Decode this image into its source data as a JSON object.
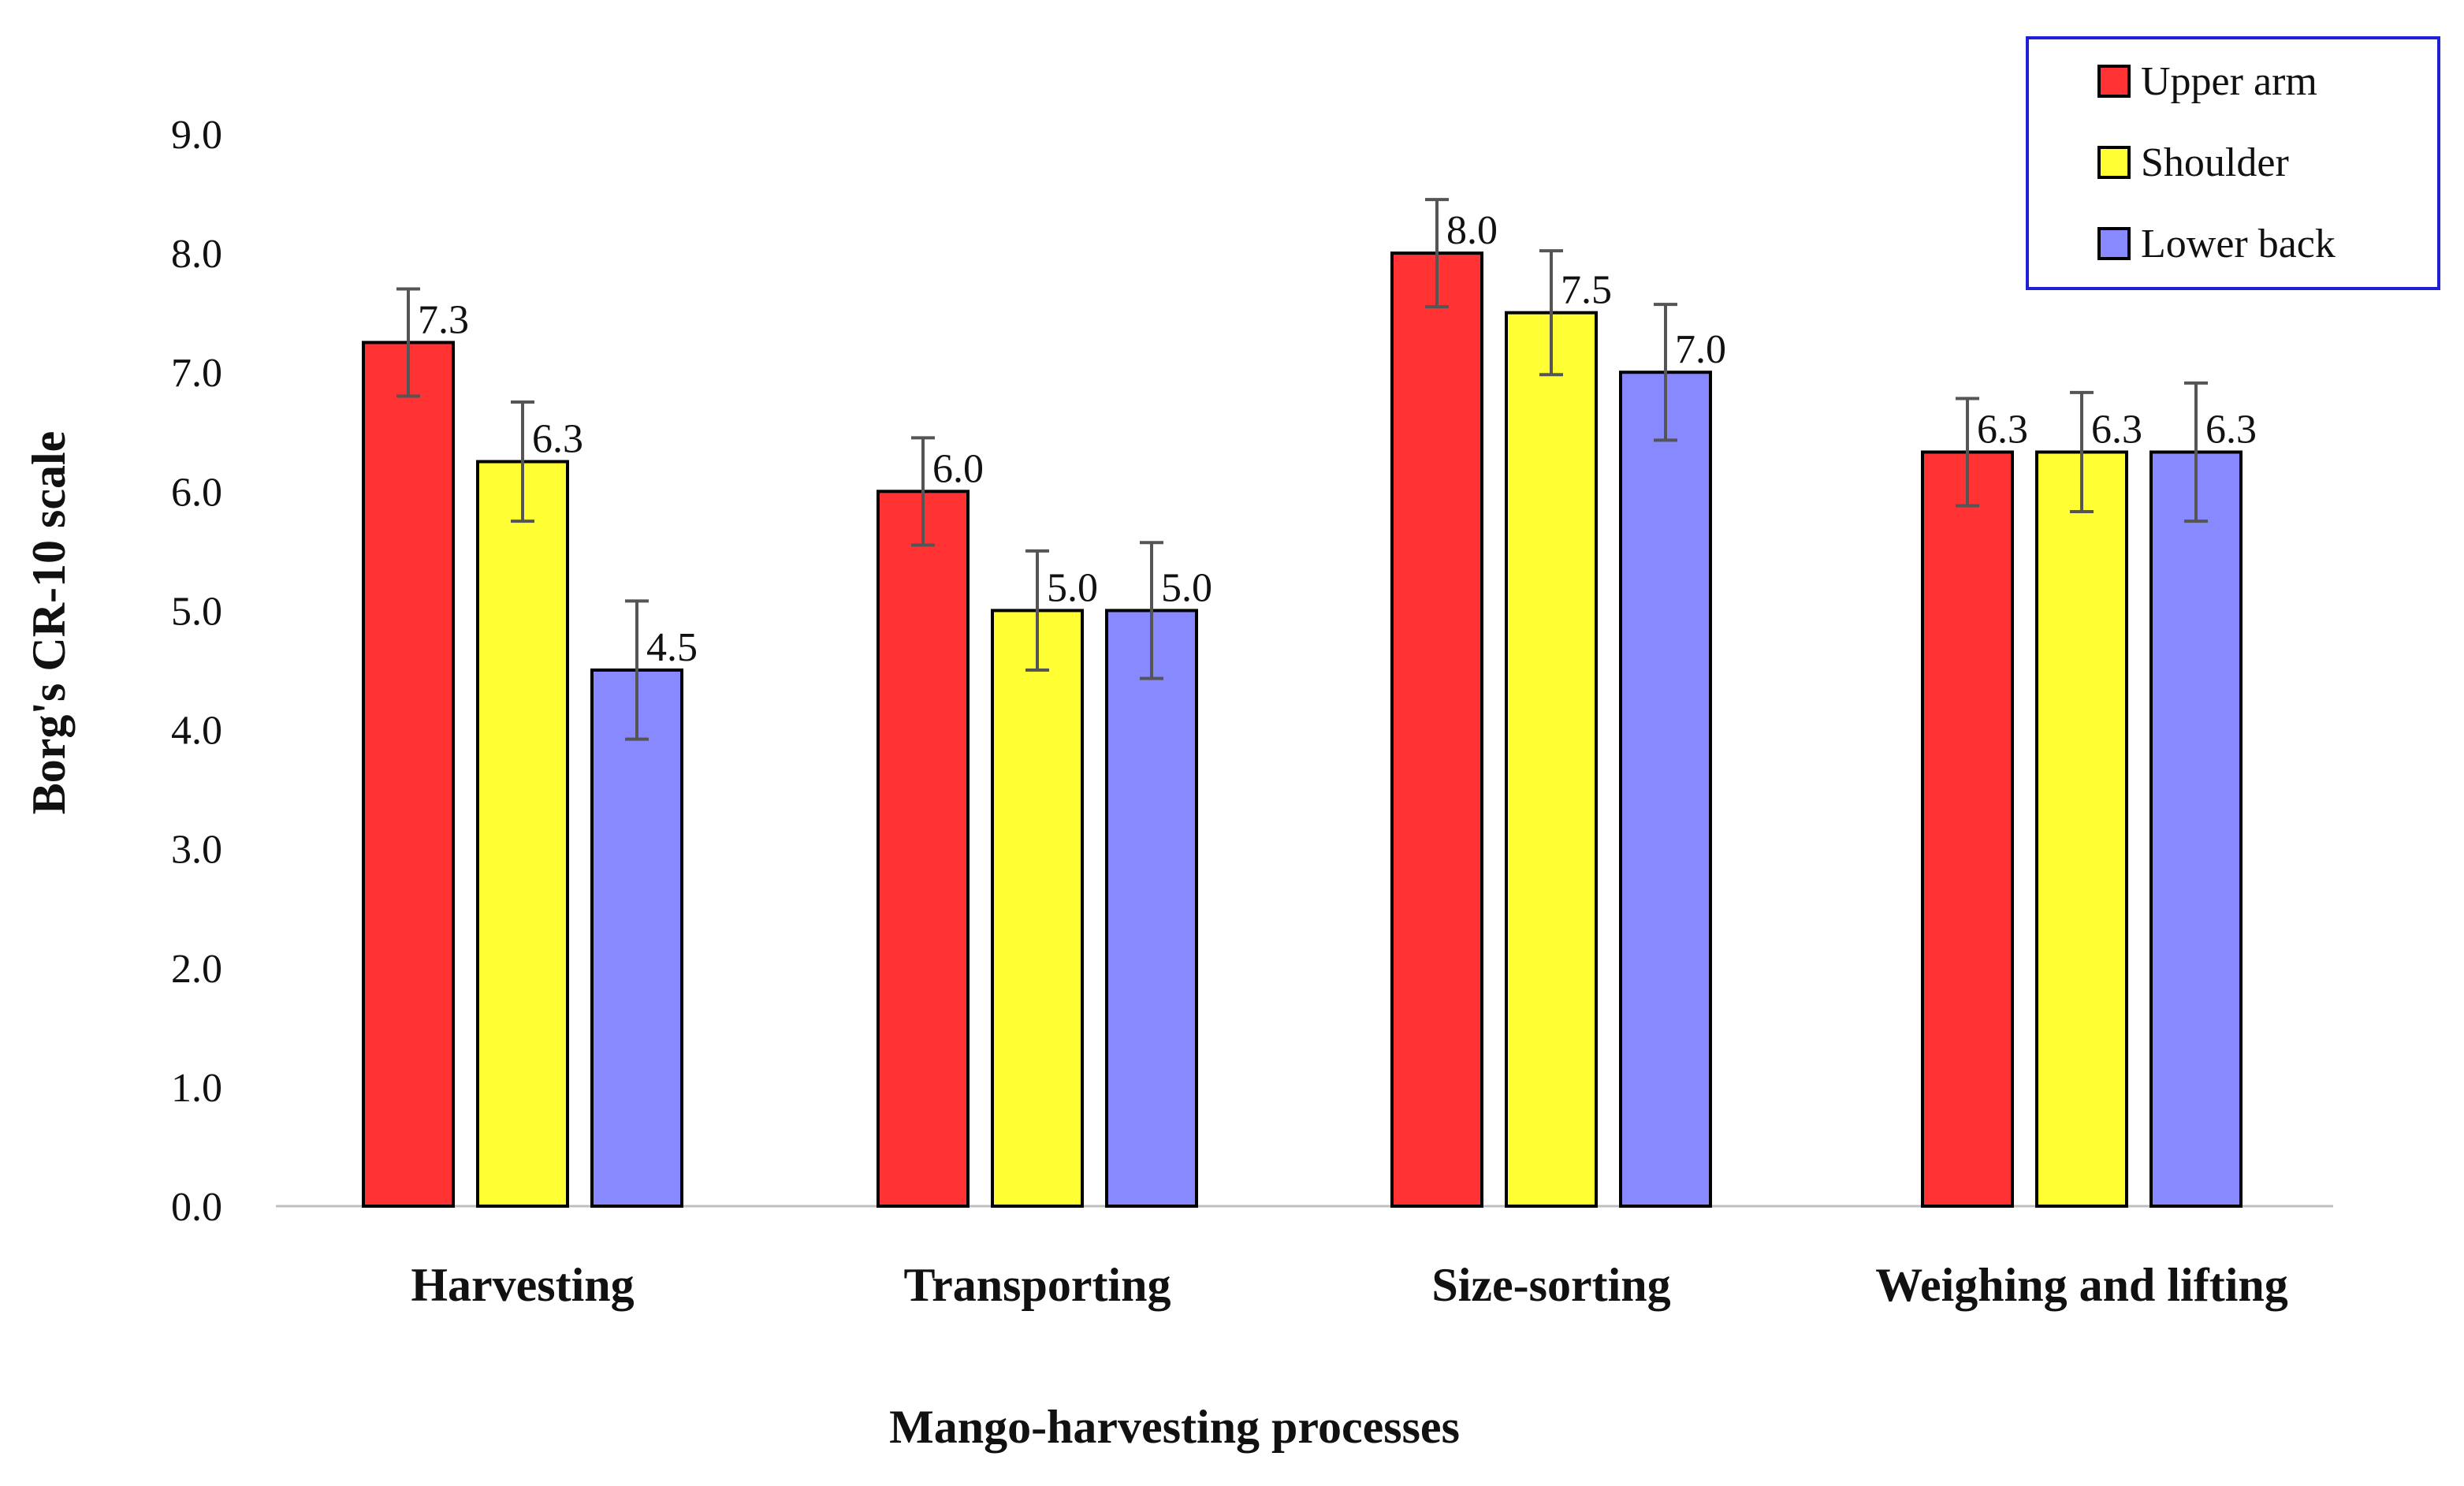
{
  "chart_data": {
    "type": "bar",
    "title": "",
    "xlabel": "Mango-harvesting processes",
    "ylabel": "Borg's CR-10 scale",
    "ylim": [
      0,
      9
    ],
    "yticks": [
      "0.0",
      "1.0",
      "2.0",
      "3.0",
      "4.0",
      "5.0",
      "6.0",
      "7.0",
      "8.0",
      "9.0"
    ],
    "categories": [
      "Harvesting",
      "Transporting",
      "Size-sorting",
      "Weighing and lifting"
    ],
    "series": [
      {
        "name": "Upper arm",
        "color": "#ff3333",
        "values": [
          7.25,
          6.0,
          8.0,
          6.33
        ],
        "labels": [
          "7.3",
          "6.0",
          "8.0",
          "6.3"
        ],
        "errors": [
          0.45,
          0.45,
          0.45,
          0.45
        ]
      },
      {
        "name": "Shoulder",
        "color": "#ffff33",
        "values": [
          6.25,
          5.0,
          7.5,
          6.33
        ],
        "labels": [
          "6.3",
          "5.0",
          "7.5",
          "6.3"
        ],
        "errors": [
          0.5,
          0.5,
          0.52,
          0.5
        ]
      },
      {
        "name": "Lower back",
        "color": "#8888ff",
        "values": [
          4.5,
          5.0,
          7.0,
          6.33
        ],
        "labels": [
          "4.5",
          "5.0",
          "7.0",
          "6.3"
        ],
        "errors": [
          0.58,
          0.57,
          0.57,
          0.58
        ]
      }
    ],
    "legend_position": "top-right",
    "legend_border_color": "#1f1fd6",
    "grid": false
  }
}
